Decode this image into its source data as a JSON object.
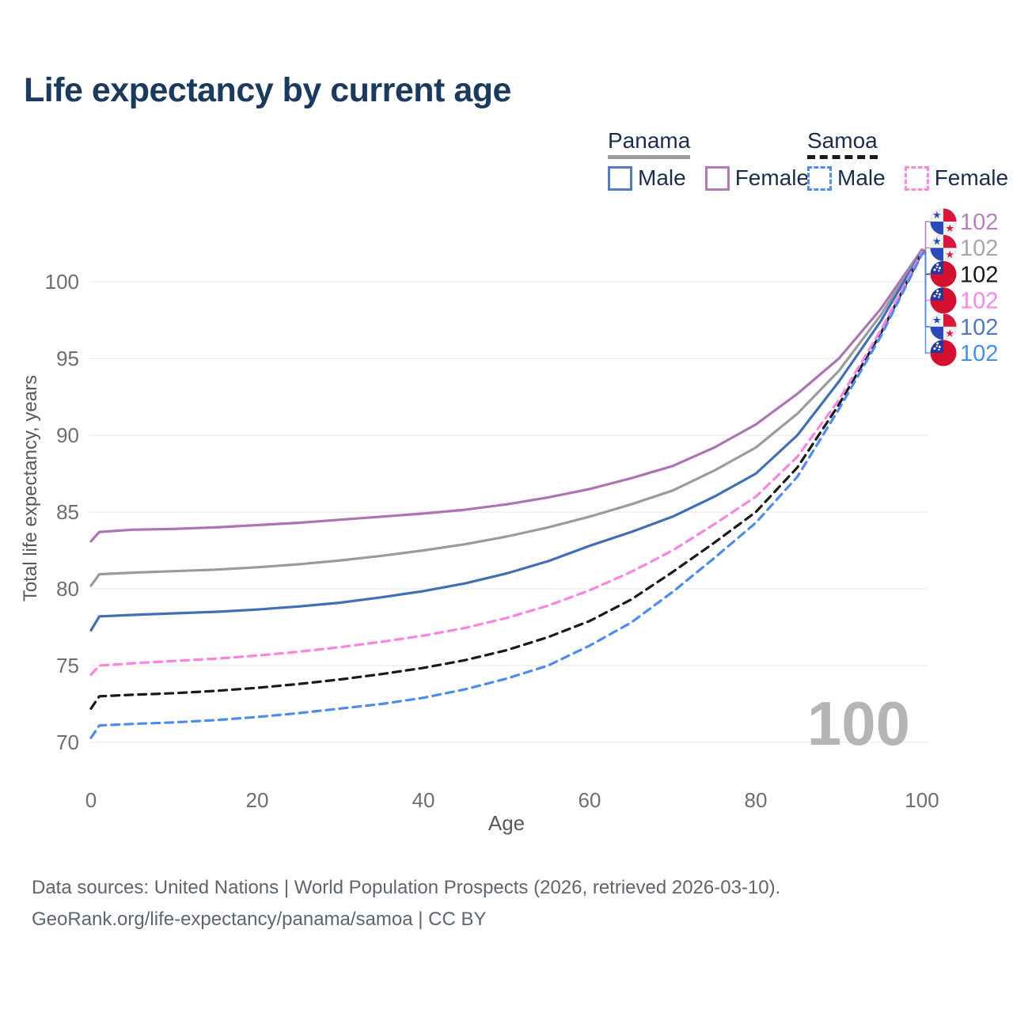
{
  "title": "Life expectancy by current age",
  "legend": {
    "groups": [
      {
        "name": "Panama",
        "line_style": "solid",
        "underline_color": "#9c9c9c",
        "items": [
          {
            "label": "Male",
            "color": "#517dc3",
            "dash": false
          },
          {
            "label": "Female",
            "color": "#b279b8",
            "dash": false
          }
        ]
      },
      {
        "name": "Samoa",
        "line_style": "dashed",
        "underline_color": "#1a1a1a",
        "items": [
          {
            "label": "Male",
            "color": "#4f8df6",
            "dash": true
          },
          {
            "label": "Female",
            "color": "#fb8ae2",
            "dash": true
          }
        ]
      }
    ]
  },
  "footer": {
    "line1": "Data sources: United Nations | World Population Prospects (2026, retrieved 2026-03-10).",
    "line2": "GeoRank.org/life-expectancy/panama/samoa | CC BY"
  },
  "chart_data": {
    "type": "line",
    "title": "Life expectancy by current age",
    "xlabel": "Age",
    "ylabel": "Total life expectancy, years",
    "x_ticks": [
      0,
      20,
      40,
      60,
      80,
      100
    ],
    "y_ticks": [
      70,
      75,
      80,
      85,
      90,
      95,
      100
    ],
    "xlim": [
      0,
      100
    ],
    "ylim": [
      70,
      103
    ],
    "grid": true,
    "legend_position": "top-right",
    "hover_age_indicator": "100",
    "axis_color": "#6e6e6e",
    "grid_color": "#ececec",
    "watermark_color": "#b5b5b5",
    "ages": [
      0,
      1,
      5,
      10,
      15,
      20,
      25,
      30,
      35,
      40,
      45,
      50,
      55,
      60,
      65,
      70,
      75,
      80,
      85,
      90,
      95,
      100
    ],
    "series": [
      {
        "name": "Panama Female",
        "country": "Panama",
        "sex": "Female",
        "flag": "panama",
        "dash": false,
        "row": 0,
        "color": "#ad74b4",
        "label_color": "#b580bd",
        "end_label": "102",
        "values": [
          83.1,
          83.7,
          83.85,
          83.9,
          84.0,
          84.15,
          84.3,
          84.5,
          84.7,
          84.9,
          85.15,
          85.5,
          85.95,
          86.5,
          87.2,
          88.0,
          89.2,
          90.7,
          92.7,
          95.0,
          98.2,
          102.1
        ]
      },
      {
        "name": "Panama Both sexes",
        "country": "Panama",
        "sex": "Both sexes",
        "flag": "panama",
        "dash": false,
        "row": 1,
        "color": "#9b9b9b",
        "label_color": "#a7a7a7",
        "end_label": "102",
        "values": [
          80.2,
          80.95,
          81.05,
          81.15,
          81.25,
          81.4,
          81.6,
          81.85,
          82.15,
          82.5,
          82.9,
          83.4,
          84.0,
          84.7,
          85.5,
          86.4,
          87.7,
          89.2,
          91.4,
          94.2,
          97.8,
          102.05
        ]
      },
      {
        "name": "Samoa Both sexes",
        "country": "Samoa",
        "sex": "Both sexes",
        "flag": "samoa",
        "dash": true,
        "row": 2,
        "color": "#1a1a1a",
        "label_color": "#161616",
        "end_label": "102",
        "values": [
          72.2,
          73.0,
          73.1,
          73.2,
          73.35,
          73.55,
          73.8,
          74.1,
          74.45,
          74.85,
          75.35,
          76.0,
          76.85,
          77.9,
          79.3,
          81.1,
          83.0,
          85.0,
          87.9,
          92.0,
          96.6,
          101.9
        ]
      },
      {
        "name": "Samoa Female",
        "country": "Samoa",
        "sex": "Female",
        "flag": "samoa",
        "dash": true,
        "row": 3,
        "color": "#fb84e0",
        "label_color": "#fb85e6",
        "end_label": "102",
        "values": [
          74.4,
          75.0,
          75.15,
          75.3,
          75.45,
          75.65,
          75.9,
          76.2,
          76.55,
          76.95,
          77.45,
          78.1,
          78.9,
          79.9,
          81.1,
          82.5,
          84.2,
          86.0,
          88.6,
          92.3,
          96.8,
          101.95
        ]
      },
      {
        "name": "Panama Male",
        "country": "Panama",
        "sex": "Male",
        "flag": "panama",
        "dash": false,
        "row": 4,
        "color": "#3f70b7",
        "label_color": "#4e79c4",
        "end_label": "102",
        "values": [
          77.3,
          78.2,
          78.3,
          78.4,
          78.5,
          78.65,
          78.85,
          79.1,
          79.45,
          79.85,
          80.35,
          81.0,
          81.8,
          82.8,
          83.7,
          84.7,
          86.0,
          87.5,
          90.0,
          93.5,
          97.4,
          102.0
        ]
      },
      {
        "name": "Samoa Male",
        "country": "Samoa",
        "sex": "Male",
        "flag": "samoa",
        "dash": true,
        "row": 5,
        "color": "#4a8cf2",
        "label_color": "#4390f5",
        "end_label": "102",
        "values": [
          70.3,
          71.1,
          71.2,
          71.3,
          71.45,
          71.65,
          71.9,
          72.2,
          72.5,
          72.9,
          73.45,
          74.15,
          75.0,
          76.3,
          77.8,
          79.8,
          82.0,
          84.3,
          87.3,
          91.7,
          96.4,
          101.8
        ]
      }
    ]
  }
}
